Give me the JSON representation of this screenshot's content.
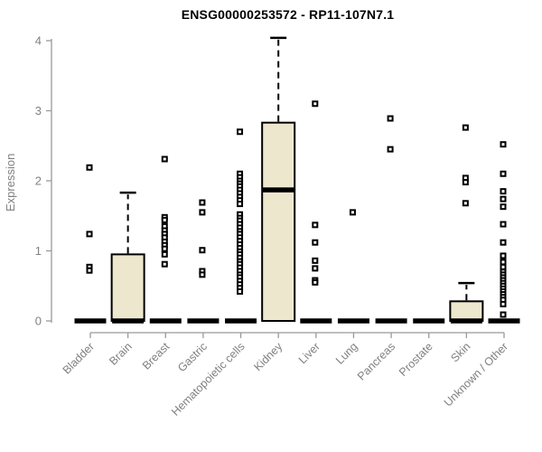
{
  "title": "ENSG00000253572 - RP11-107N7.1",
  "style": {
    "box_fill": "#EDE7CE",
    "box_stroke": "#000000",
    "median_color": "#000000",
    "outlier_color": "#000000",
    "axis_line_color": "#999999",
    "axis_text_color": "#808080",
    "title_color": "#000000",
    "background": "#ffffff"
  },
  "chart_data": {
    "type": "boxplot",
    "title": "ENSG00000253572 - RP11-107N7.1",
    "xlabel": "",
    "ylabel": "Expression",
    "ylim": [
      0,
      4.1
    ],
    "yticks": [
      0,
      1,
      2,
      3,
      4
    ],
    "grid": false,
    "legend": false,
    "categories": [
      "Bladder",
      "Brain",
      "Breast",
      "Gastric",
      "Hematopoietic cells",
      "Kidney",
      "Liver",
      "Lung",
      "Pancreas",
      "Prostate",
      "Skin",
      "Unknown / Other"
    ],
    "series": [
      {
        "category": "Bladder",
        "whisker_low": 0,
        "q1": 0,
        "median": 0,
        "q3": 0,
        "whisker_high": 0,
        "outliers": [
          2.19,
          1.24,
          0.77,
          0.72
        ]
      },
      {
        "category": "Brain",
        "whisker_low": 0,
        "q1": 0,
        "median": 0,
        "q3": 0.95,
        "whisker_high": 1.83,
        "outliers": []
      },
      {
        "category": "Breast",
        "whisker_low": 0,
        "q1": 0,
        "median": 0,
        "q3": 0,
        "whisker_high": 0,
        "outliers": [
          2.31,
          1.48,
          1.44,
          1.35,
          1.29,
          1.24,
          1.19,
          1.13,
          1.08,
          1.03,
          0.95,
          0.81
        ]
      },
      {
        "category": "Gastric",
        "whisker_low": 0,
        "q1": 0,
        "median": 0,
        "q3": 0,
        "whisker_high": 0,
        "outliers": [
          1.69,
          1.55,
          1.01,
          0.71,
          0.66
        ]
      },
      {
        "category": "Hematopoietic cells",
        "whisker_low": 0,
        "q1": 0,
        "median": 0,
        "q3": 0,
        "whisker_high": 0,
        "outliers": [
          2.7,
          2.1,
          2.05,
          2.0,
          1.96,
          1.92,
          1.87,
          1.82,
          1.77,
          1.72,
          1.67,
          1.52,
          1.47,
          1.43,
          1.38,
          1.33,
          1.28,
          1.24,
          1.19,
          1.14,
          1.09,
          1.04,
          0.99,
          0.95,
          0.9,
          0.85,
          0.81,
          0.76,
          0.71,
          0.66,
          0.62,
          0.57,
          0.52,
          0.47,
          0.42
        ]
      },
      {
        "category": "Kidney",
        "whisker_low": 0,
        "q1": 0,
        "median": 1.87,
        "q3": 2.83,
        "whisker_high": 4.04,
        "outliers": []
      },
      {
        "category": "Liver",
        "whisker_low": 0,
        "q1": 0,
        "median": 0,
        "q3": 0,
        "whisker_high": 0,
        "outliers": [
          3.1,
          1.37,
          1.12,
          0.86,
          0.75,
          0.58,
          0.55
        ]
      },
      {
        "category": "Lung",
        "whisker_low": 0,
        "q1": 0,
        "median": 0,
        "q3": 0,
        "whisker_high": 0,
        "outliers": [
          1.55
        ]
      },
      {
        "category": "Pancreas",
        "whisker_low": 0,
        "q1": 0,
        "median": 0,
        "q3": 0,
        "whisker_high": 0,
        "outliers": [
          2.89,
          2.45
        ]
      },
      {
        "category": "Prostate",
        "whisker_low": 0,
        "q1": 0,
        "median": 0,
        "q3": 0,
        "whisker_high": 0,
        "outliers": []
      },
      {
        "category": "Skin",
        "whisker_low": 0,
        "q1": 0,
        "median": 0,
        "q3": 0.28,
        "whisker_high": 0.54,
        "outliers": [
          2.76,
          2.04,
          1.98,
          1.68
        ]
      },
      {
        "category": "Unknown / Other",
        "whisker_low": 0,
        "q1": 0,
        "median": 0,
        "q3": 0,
        "whisker_high": 0,
        "outliers": [
          2.52,
          2.1,
          1.85,
          1.74,
          1.63,
          1.38,
          1.12,
          0.93,
          0.84,
          0.77,
          0.7,
          0.66,
          0.62,
          0.58,
          0.54,
          0.5,
          0.46,
          0.42,
          0.38,
          0.34,
          0.3,
          0.24,
          0.09
        ]
      }
    ]
  }
}
